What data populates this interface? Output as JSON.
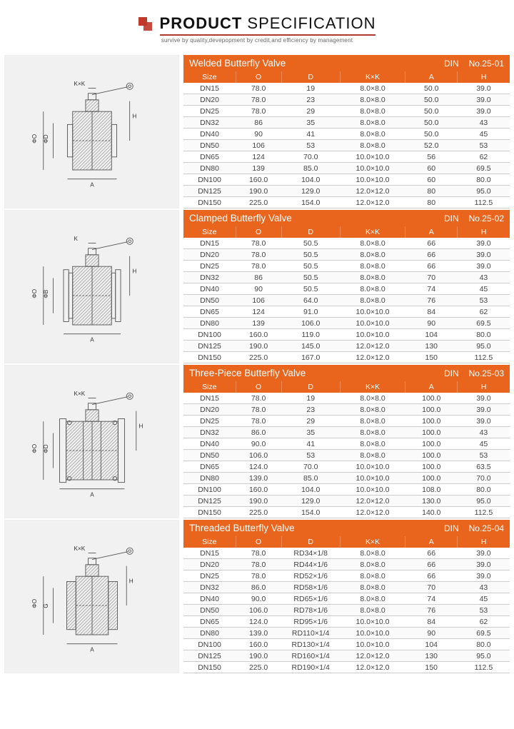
{
  "page_title_1": "PRODUCT",
  "page_title_2": "SPECIFICATION",
  "tagline": "survive by quality,devepopment by credit,and efficiency by management",
  "brand_color": "#e9641c",
  "columns": [
    "Size",
    "O",
    "D",
    "K×K",
    "A",
    "H"
  ],
  "sections": [
    {
      "title": "Welded Butterfly Valve",
      "std": "DIN",
      "code": "No.25-01",
      "diagram_labels": {
        "top": "K×K",
        "vleft1": "ΦO",
        "vleft2": "ΦD",
        "bottom": "A",
        "right": "H"
      },
      "rows": [
        [
          "DN15",
          "78.0",
          "19",
          "8.0×8.0",
          "50.0",
          "39.0"
        ],
        [
          "DN20",
          "78.0",
          "23",
          "8.0×8.0",
          "50.0",
          "39.0"
        ],
        [
          "DN25",
          "78.0",
          "29",
          "8.0×8.0",
          "50.0",
          "39.0"
        ],
        [
          "DN32",
          "86",
          "35",
          "8.0×8.0",
          "50.0",
          "43"
        ],
        [
          "DN40",
          "90",
          "41",
          "8.0×8.0",
          "50.0",
          "45"
        ],
        [
          "DN50",
          "106",
          "53",
          "8.0×8.0",
          "52.0",
          "53"
        ],
        [
          "DN65",
          "124",
          "70.0",
          "10.0×10.0",
          "56",
          "62"
        ],
        [
          "DN80",
          "139",
          "85.0",
          "10.0×10.0",
          "60",
          "69.5"
        ],
        [
          "DN100",
          "160.0",
          "104.0",
          "10.0×10.0",
          "60",
          "80.0"
        ],
        [
          "DN125",
          "190.0",
          "129.0",
          "12.0×12.0",
          "80",
          "95.0"
        ],
        [
          "DN150",
          "225.0",
          "154.0",
          "12.0×12.0",
          "80",
          "112.5"
        ]
      ]
    },
    {
      "title": "Clamped Butterfly Valve",
      "std": "DIN",
      "code": "No.25-02",
      "diagram_labels": {
        "top": "K",
        "vleft1": "ΦO",
        "vleft2": "ΦB",
        "bottom": "A",
        "right": "H"
      },
      "rows": [
        [
          "DN15",
          "78.0",
          "50.5",
          "8.0×8.0",
          "66",
          "39.0"
        ],
        [
          "DN20",
          "78.0",
          "50.5",
          "8.0×8.0",
          "66",
          "39.0"
        ],
        [
          "DN25",
          "78.0",
          "50.5",
          "8.0×8.0",
          "66",
          "39.0"
        ],
        [
          "DN32",
          "86",
          "50.5",
          "8.0×8.0",
          "70",
          "43"
        ],
        [
          "DN40",
          "90",
          "50.5",
          "8.0×8.0",
          "74",
          "45"
        ],
        [
          "DN50",
          "106",
          "64.0",
          "8.0×8.0",
          "76",
          "53"
        ],
        [
          "DN65",
          "124",
          "91.0",
          "10.0×10.0",
          "84",
          "62"
        ],
        [
          "DN80",
          "139",
          "106.0",
          "10.0×10.0",
          "90",
          "69.5"
        ],
        [
          "DN100",
          "160.0",
          "119.0",
          "10.0×10.0",
          "104",
          "80.0"
        ],
        [
          "DN125",
          "190.0",
          "145.0",
          "12.0×12.0",
          "130",
          "95.0"
        ],
        [
          "DN150",
          "225.0",
          "167.0",
          "12.0×12.0",
          "150",
          "112.5"
        ]
      ]
    },
    {
      "title": "Three-Piece Butterfly Valve",
      "std": "DIN",
      "code": "No.25-03",
      "diagram_labels": {
        "top": "K×K",
        "vleft1": "ΦO",
        "vleft2": "ΦD",
        "bottom": "A",
        "right": "H"
      },
      "rows": [
        [
          "DN15",
          "78.0",
          "19",
          "8.0×8.0",
          "100.0",
          "39.0"
        ],
        [
          "DN20",
          "78.0",
          "23",
          "8.0×8.0",
          "100.0",
          "39.0"
        ],
        [
          "DN25",
          "78.0",
          "29",
          "8.0×8.0",
          "100.0",
          "39.0"
        ],
        [
          "DN32",
          "86.0",
          "35",
          "8.0×8.0",
          "100.0",
          "43"
        ],
        [
          "DN40",
          "90.0",
          "41",
          "8.0×8.0",
          "100.0",
          "45"
        ],
        [
          "DN50",
          "106.0",
          "53",
          "8.0×8.0",
          "100.0",
          "53"
        ],
        [
          "DN65",
          "124.0",
          "70.0",
          "10.0×10.0",
          "100.0",
          "63.5"
        ],
        [
          "DN80",
          "139.0",
          "85.0",
          "10.0×10.0",
          "100.0",
          "70.0"
        ],
        [
          "DN100",
          "160.0",
          "104.0",
          "10.0×10.0",
          "108.0",
          "80.0"
        ],
        [
          "DN125",
          "190.0",
          "129.0",
          "12.0×12.0",
          "130.0",
          "95.0"
        ],
        [
          "DN150",
          "225.0",
          "154.0",
          "12.0×12.0",
          "140.0",
          "112.5"
        ]
      ]
    },
    {
      "title": "Threaded Butterfly Valve",
      "std": "DIN",
      "code": "No.25-04",
      "diagram_labels": {
        "top": "K×K",
        "vleft1": "ΦO",
        "vleft2": "G",
        "bottom": "A",
        "right": "H"
      },
      "rows": [
        [
          "DN15",
          "78.0",
          "RD34×1/8",
          "8.0×8.0",
          "66",
          "39.0"
        ],
        [
          "DN20",
          "78.0",
          "RD44×1/6",
          "8.0×8.0",
          "66",
          "39.0"
        ],
        [
          "DN25",
          "78.0",
          "RD52×1/6",
          "8.0×8.0",
          "66",
          "39.0"
        ],
        [
          "DN32",
          "86.0",
          "RD58×1/6",
          "8.0×8.0",
          "70",
          "43"
        ],
        [
          "DN40",
          "90.0",
          "RD65×1/6",
          "8.0×8.0",
          "74",
          "45"
        ],
        [
          "DN50",
          "106.0",
          "RD78×1/6",
          "8.0×8.0",
          "76",
          "53"
        ],
        [
          "DN65",
          "124.0",
          "RD95×1/6",
          "10.0×10.0",
          "84",
          "62"
        ],
        [
          "DN80",
          "139.0",
          "RD110×1/4",
          "10.0×10.0",
          "90",
          "69.5"
        ],
        [
          "DN100",
          "160.0",
          "RD130×1/4",
          "10.0×10.0",
          "104",
          "80.0"
        ],
        [
          "DN125",
          "190.0",
          "RD160×1/4",
          "12.0×12.0",
          "130",
          "95.0"
        ],
        [
          "DN150",
          "225.0",
          "RD190×1/4",
          "12.0×12.0",
          "150",
          "112.5"
        ]
      ]
    }
  ]
}
